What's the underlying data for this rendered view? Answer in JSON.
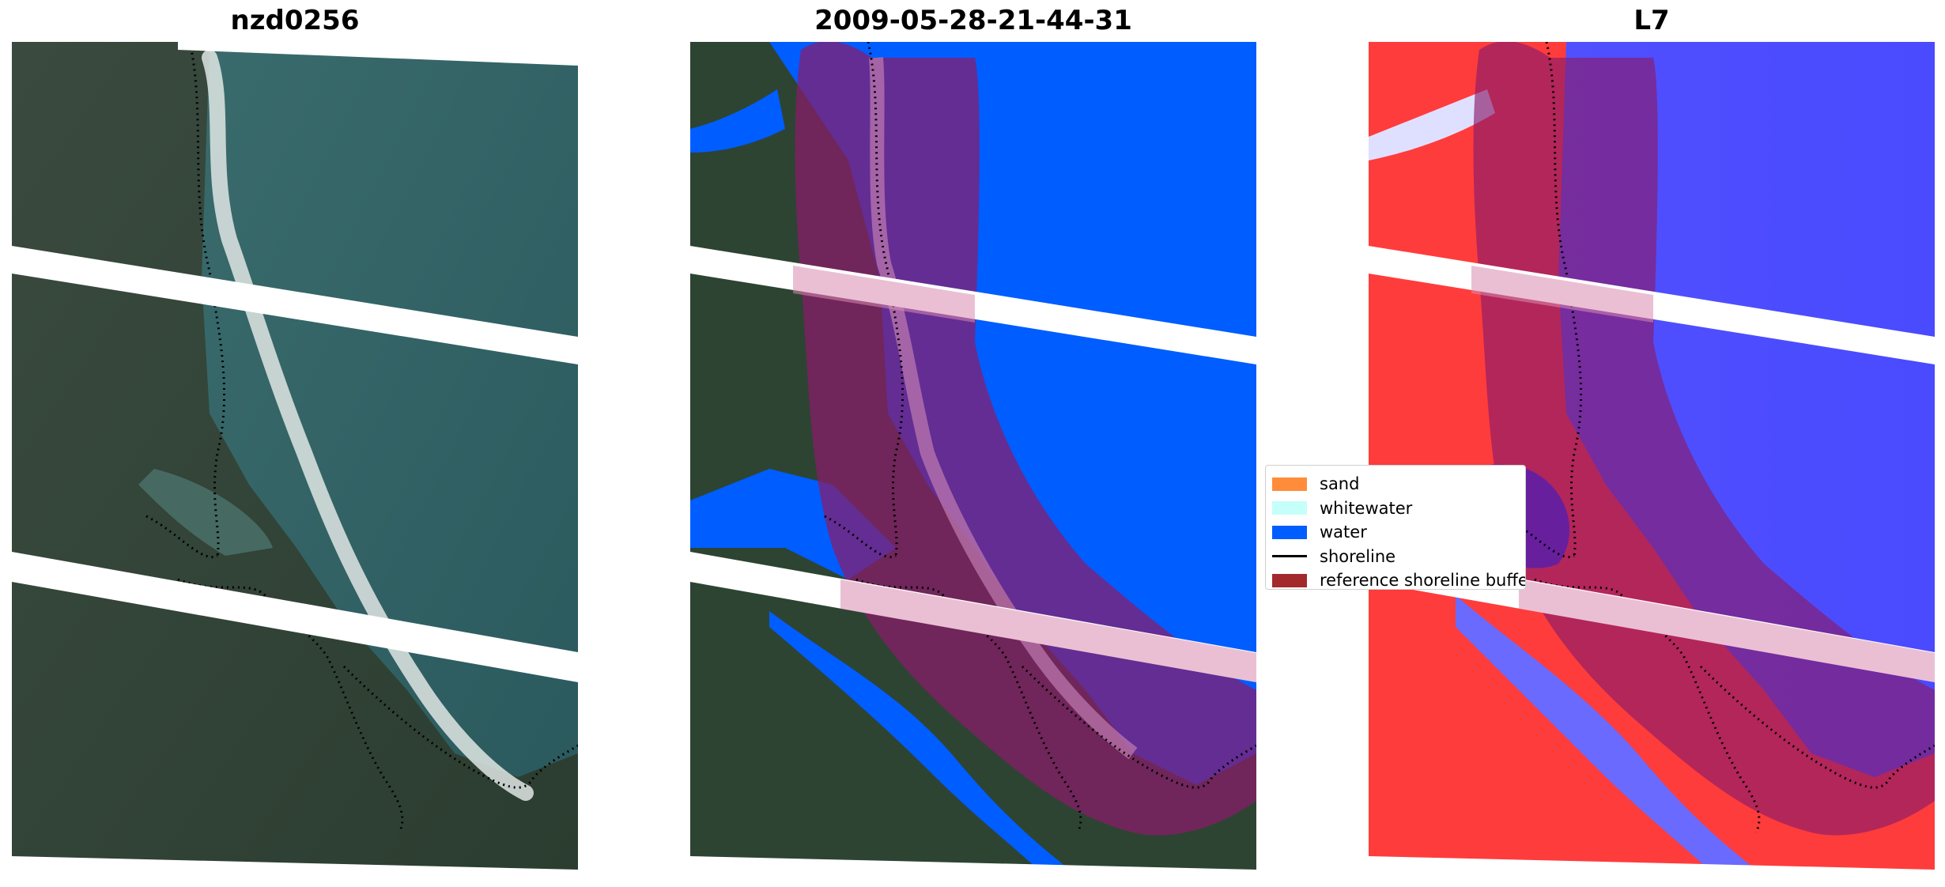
{
  "panels": [
    {
      "title": "nzd0256"
    },
    {
      "title": "2009-05-28-21-44-31"
    },
    {
      "title": "L7"
    }
  ],
  "legend": {
    "items": [
      {
        "label": "sand",
        "color": "#ff8c3a",
        "kind": "patch"
      },
      {
        "label": "whitewater",
        "color": "#c5fff9",
        "kind": "patch"
      },
      {
        "label": "water",
        "color": "#005dff",
        "kind": "patch"
      },
      {
        "label": "shoreline",
        "color": "#000000",
        "kind": "line"
      },
      {
        "label": "reference shoreline buffer",
        "color": "#a2292c",
        "kind": "patch"
      }
    ]
  },
  "colors": {
    "water_class": "#005dff",
    "buffer_overlay": "#8b1a6a",
    "rgb_sea": "#2f5e61",
    "rgb_land": "#2d4433",
    "index_red": "#ff2a2a",
    "index_blue": "#3d3dff",
    "nodata_stripe": "#ffffff"
  }
}
